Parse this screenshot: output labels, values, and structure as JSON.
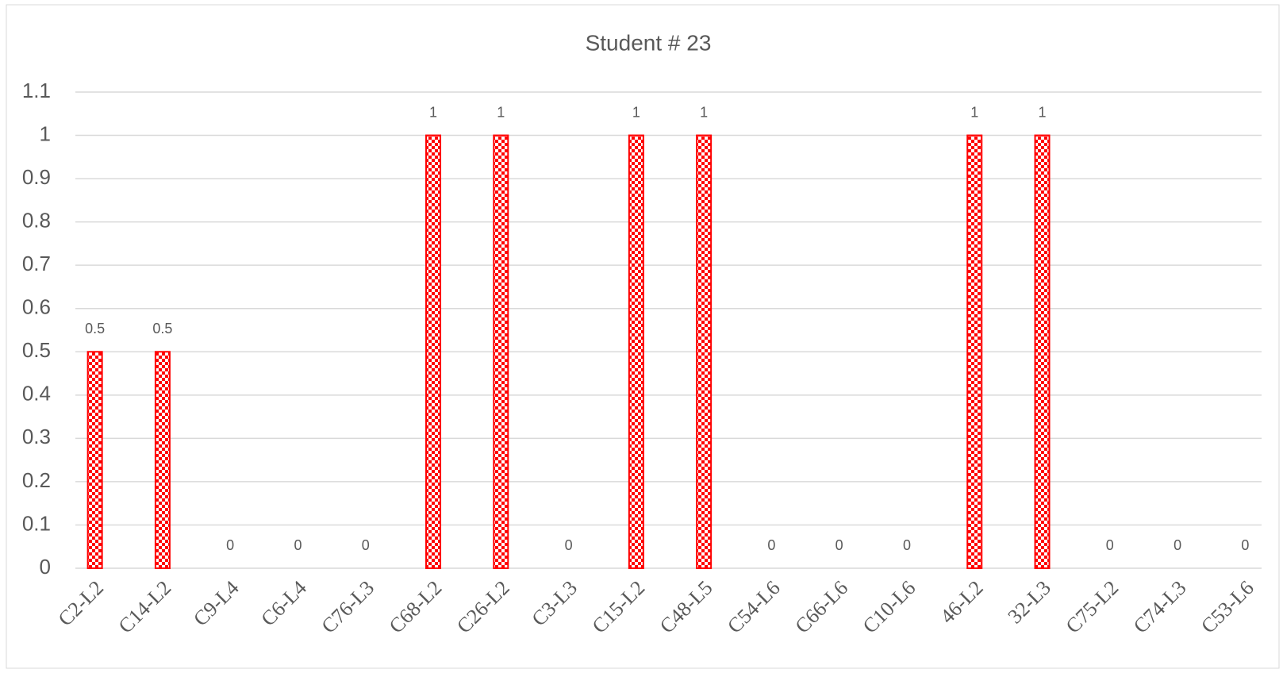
{
  "chart_data": {
    "type": "bar",
    "title": "Student # 23",
    "categories": [
      "C2-L2",
      "C14-L2",
      "C9-L4",
      "C6-L4",
      "C76-L3",
      "C68-L2",
      "C26-L2",
      "C3-L3",
      "C15-L2",
      "C48-L5",
      "C54-L6",
      "C66-L6",
      "C10-L6",
      "46-L2",
      "32-L3",
      "C75-L2",
      "C74-L3",
      "C53-L6"
    ],
    "values": [
      0.5,
      0.5,
      0,
      0,
      0,
      1,
      1,
      0,
      1,
      1,
      0,
      0,
      0,
      1,
      1,
      0,
      0,
      0
    ],
    "color": "#ff0000",
    "ylim": [
      0,
      1.1
    ],
    "yticks": [
      0,
      0.1,
      0.2,
      0.3,
      0.4,
      0.5,
      0.6,
      0.7,
      0.8,
      0.9,
      1,
      1.1
    ],
    "grid": true
  }
}
